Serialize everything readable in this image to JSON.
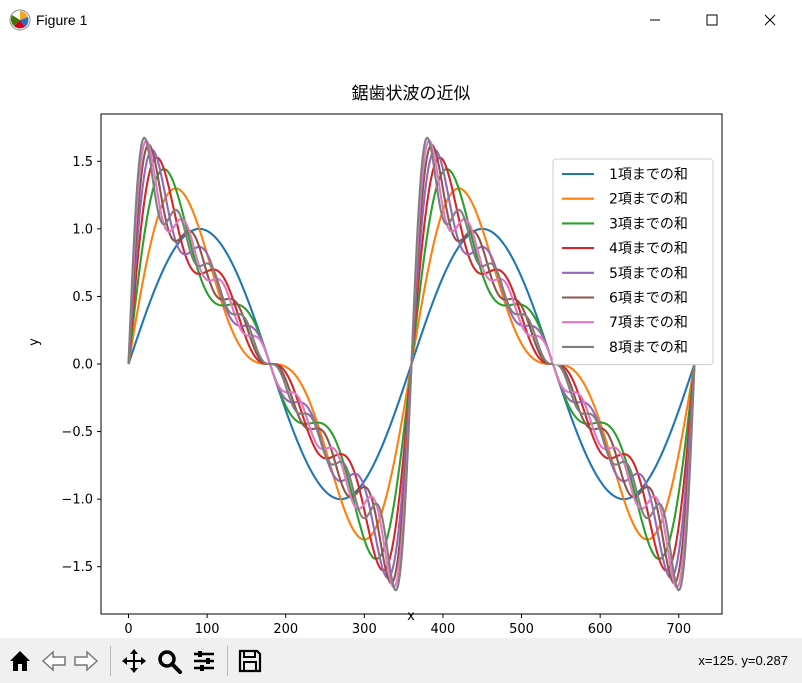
{
  "window": {
    "title": "Figure 1",
    "minimize_glyph": "—",
    "maximize_glyph": "☐",
    "close_glyph": "✕"
  },
  "toolbar": {
    "buttons": [
      "home-icon",
      "back-icon",
      "forward-icon",
      "pan-icon",
      "zoom-icon",
      "configure-subplots-icon",
      "save-icon"
    ],
    "coords": "x=125. y=0.287"
  },
  "chart_data": {
    "type": "line",
    "title": "鋸歯状波の近似",
    "xlabel": "x",
    "ylabel": "y",
    "xlim": [
      -35,
      755
    ],
    "ylim": [
      -1.85,
      1.85
    ],
    "xticks": [
      0,
      100,
      200,
      300,
      400,
      500,
      600,
      700
    ],
    "yticks": [
      -1.5,
      -1.0,
      -0.5,
      0.0,
      0.5,
      1.0,
      1.5
    ],
    "ytick_labels": [
      "−1.5",
      "−1.0",
      "−0.5",
      "0.0",
      "0.5",
      "1.0",
      "1.5"
    ],
    "x_range": [
      0,
      720
    ],
    "legend_loc": "upper right",
    "grid": false,
    "series": [
      {
        "name": "1項までの和",
        "terms": 1,
        "color": "#1f77b4"
      },
      {
        "name": "2項までの和",
        "terms": 2,
        "color": "#ff7f0e"
      },
      {
        "name": "3項までの和",
        "terms": 3,
        "color": "#2ca02c"
      },
      {
        "name": "4項までの和",
        "terms": 4,
        "color": "#d62728"
      },
      {
        "name": "5項までの和",
        "terms": 5,
        "color": "#9467bd"
      },
      {
        "name": "6項までの和",
        "terms": 6,
        "color": "#8c564b"
      },
      {
        "name": "7項までの和",
        "terms": 7,
        "color": "#e377c2"
      },
      {
        "name": "8項までの和",
        "terms": 8,
        "color": "#7f7f7f"
      }
    ]
  }
}
